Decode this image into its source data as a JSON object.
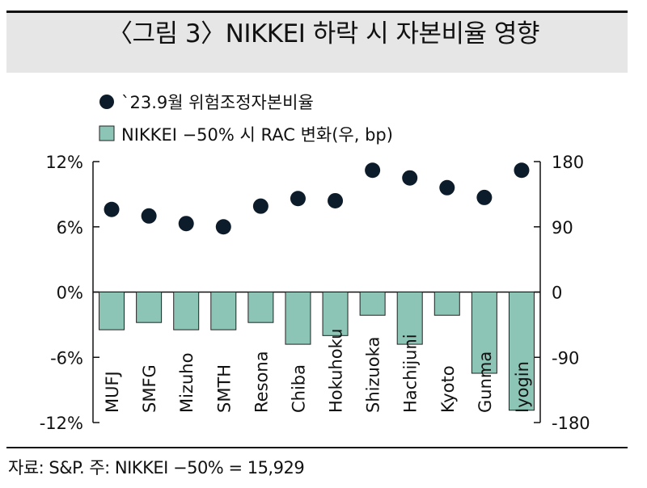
{
  "title": "〈그림 3〉NIKKEI 하락 시 자본비율 영향",
  "footnote": "자료: S&P.  주: NIKKEI −50% = 15,929",
  "colors": {
    "bar": "#8cc5b5",
    "bar_stroke": "#222222",
    "dot": "#0d1c2a",
    "title_band": "#e6e6e6"
  },
  "chart_data": {
    "type": "bar+scatter",
    "categories": [
      "MUFJ",
      "SMFG",
      "Mizuho",
      "SMTH",
      "Resona",
      "Chiba",
      "Hokuhoku",
      "Shizuoka",
      "Hachijuni",
      "Kyoto",
      "Gunma",
      "Iyogin"
    ],
    "series": [
      {
        "name": "`23.9월 위험조정자본비율",
        "type": "scatter",
        "axis": "left",
        "unit": "%",
        "values": [
          7.6,
          7.0,
          6.3,
          6.0,
          7.9,
          8.6,
          8.4,
          11.2,
          10.5,
          9.6,
          8.7,
          11.2
        ]
      },
      {
        "name": "NIKKEI −50% 시 RAC 변화(우, bp)",
        "type": "bar",
        "axis": "right",
        "unit": "bp",
        "values": [
          -52,
          -42,
          -52,
          -52,
          -42,
          -72,
          -60,
          -32,
          -72,
          -32,
          -112,
          -163
        ]
      }
    ],
    "left_axis": {
      "ylim": [
        -12,
        12
      ],
      "ticks": [
        "12%",
        "6%",
        "0%",
        "-6%",
        "-12%"
      ]
    },
    "right_axis": {
      "ylim": [
        -180,
        180
      ],
      "ticks": [
        "180",
        "90",
        "0",
        "-90",
        "-180"
      ]
    },
    "legend_position": "top-left",
    "grid": false
  }
}
